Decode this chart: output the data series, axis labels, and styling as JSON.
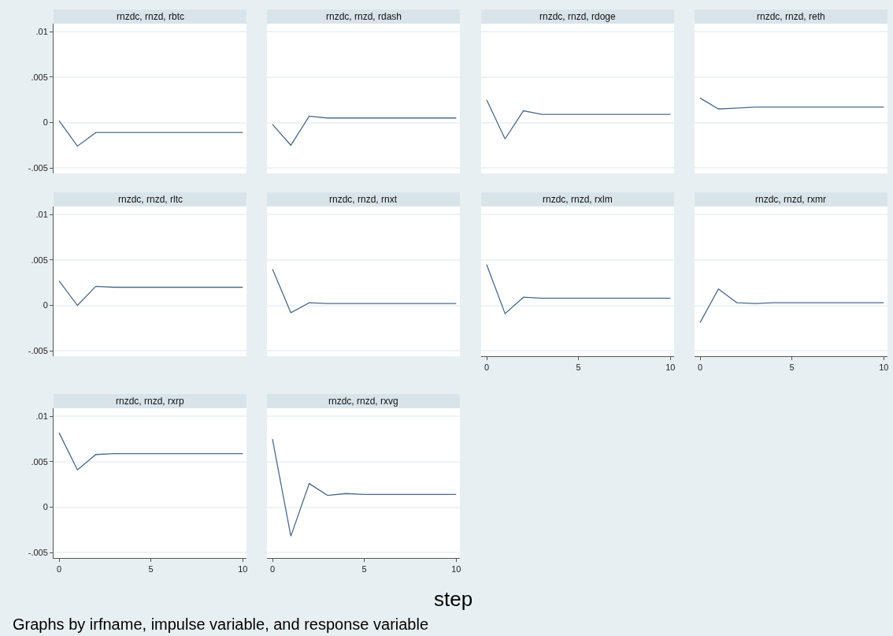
{
  "chart_data": [
    {
      "type": "line",
      "title": "rnzdc, rnzd, rbtc",
      "x": [
        0,
        1,
        2,
        3,
        4,
        5,
        6,
        7,
        8,
        9,
        10
      ],
      "series": [
        {
          "color": "#4c6a8a",
          "values": [
            0.0002,
            -0.0026,
            -0.0011,
            -0.0011,
            -0.0011,
            -0.0011,
            -0.0011,
            -0.0011,
            -0.0011,
            -0.0011,
            -0.0011
          ]
        }
      ],
      "xlim": [
        -0.3,
        10.2
      ],
      "ylim": [
        -0.0056,
        0.0109
      ],
      "yticks": [
        {
          "value": -0.005,
          "label": "-.005"
        },
        0,
        {
          "value": 0.005,
          "label": ".005"
        },
        {
          "value": 0.01,
          "label": ".01"
        }
      ],
      "grid": "y",
      "tick_labels": "y"
    },
    {
      "type": "line",
      "title": "rnzdc, rnzd, rdash",
      "x": [
        0,
        1,
        2,
        3,
        4,
        5,
        6,
        7,
        8,
        9,
        10
      ],
      "series": [
        {
          "color": "#4c6a8a",
          "values": [
            -0.0002,
            -0.0025,
            0.0007,
            0.0005,
            0.0005,
            0.0005,
            0.0005,
            0.0005,
            0.0005,
            0.0005,
            0.0005
          ]
        }
      ],
      "xlim": [
        -0.3,
        10.2
      ],
      "ylim": [
        -0.0056,
        0.0109
      ],
      "yticks": [
        {
          "value": -0.005,
          "label": null
        },
        {
          "value": 0,
          "label": null
        },
        {
          "value": 0.005,
          "label": null
        },
        {
          "value": 0.01,
          "label": null
        }
      ],
      "grid": "y",
      "tick_labels": false
    },
    {
      "type": "line",
      "title": "rnzdc, rnzd, rdoge",
      "x": [
        0,
        1,
        2,
        3,
        4,
        5,
        6,
        7,
        8,
        9,
        10
      ],
      "series": [
        {
          "color": "#4c6a8a",
          "values": [
            0.0025,
            -0.0018,
            0.0013,
            0.0009,
            0.0009,
            0.0009,
            0.0009,
            0.0009,
            0.0009,
            0.0009,
            0.0009
          ]
        }
      ],
      "xlim": [
        -0.3,
        10.2
      ],
      "ylim": [
        -0.0056,
        0.0109
      ],
      "yticks": [
        {
          "value": -0.005,
          "label": null
        },
        {
          "value": 0,
          "label": null
        },
        {
          "value": 0.005,
          "label": null
        },
        {
          "value": 0.01,
          "label": null
        }
      ],
      "grid": "y",
      "tick_labels": false
    },
    {
      "type": "line",
      "title": "rnzdc, rnzd, reth",
      "x": [
        0,
        1,
        2,
        3,
        4,
        5,
        6,
        7,
        8,
        9,
        10
      ],
      "series": [
        {
          "color": "#4c6a8a",
          "values": [
            0.0027,
            0.0015,
            0.0016,
            0.0017,
            0.0017,
            0.0017,
            0.0017,
            0.0017,
            0.0017,
            0.0017,
            0.0017
          ]
        }
      ],
      "xlim": [
        -0.3,
        10.2
      ],
      "ylim": [
        -0.0056,
        0.0109
      ],
      "yticks": [
        {
          "value": -0.005,
          "label": null
        },
        {
          "value": 0,
          "label": null
        },
        {
          "value": 0.005,
          "label": null
        },
        {
          "value": 0.01,
          "label": null
        }
      ],
      "grid": "y",
      "tick_labels": false
    },
    {
      "type": "line",
      "title": "rnzdc, rnzd, rltc",
      "x": [
        0,
        1,
        2,
        3,
        4,
        5,
        6,
        7,
        8,
        9,
        10
      ],
      "series": [
        {
          "color": "#4c6a8a",
          "values": [
            0.0027,
            0.0,
            0.0021,
            0.002,
            0.002,
            0.002,
            0.002,
            0.002,
            0.002,
            0.002,
            0.002
          ]
        }
      ],
      "xlim": [
        -0.3,
        10.2
      ],
      "ylim": [
        -0.0056,
        0.0109
      ],
      "yticks": [
        {
          "value": -0.005,
          "label": "-.005"
        },
        0,
        {
          "value": 0.005,
          "label": ".005"
        },
        {
          "value": 0.01,
          "label": ".01"
        }
      ],
      "grid": "y",
      "tick_labels": "y"
    },
    {
      "type": "line",
      "title": "rnzdc, rnzd, rnxt",
      "x": [
        0,
        1,
        2,
        3,
        4,
        5,
        6,
        7,
        8,
        9,
        10
      ],
      "series": [
        {
          "color": "#4c6a8a",
          "values": [
            0.004,
            -0.0008,
            0.0003,
            0.0002,
            0.0002,
            0.0002,
            0.0002,
            0.0002,
            0.0002,
            0.0002,
            0.0002
          ]
        }
      ],
      "xlim": [
        -0.3,
        10.2
      ],
      "ylim": [
        -0.0056,
        0.0109
      ],
      "yticks": [
        {
          "value": -0.005,
          "label": null
        },
        {
          "value": 0,
          "label": null
        },
        {
          "value": 0.005,
          "label": null
        },
        {
          "value": 0.01,
          "label": null
        }
      ],
      "grid": "y",
      "tick_labels": false
    },
    {
      "type": "line",
      "title": "rnzdc, rnzd, rxlm",
      "x": [
        0,
        1,
        2,
        3,
        4,
        5,
        6,
        7,
        8,
        9,
        10
      ],
      "series": [
        {
          "color": "#4c6a8a",
          "values": [
            0.0045,
            -0.0009,
            0.0009,
            0.0008,
            0.0008,
            0.0008,
            0.0008,
            0.0008,
            0.0008,
            0.0008,
            0.0008
          ]
        }
      ],
      "xlim": [
        -0.3,
        10.2
      ],
      "ylim": [
        -0.0056,
        0.0109
      ],
      "xticks": [
        0,
        5,
        10
      ],
      "yticks": [
        {
          "value": -0.005,
          "label": null
        },
        {
          "value": 0,
          "label": null
        },
        {
          "value": 0.005,
          "label": null
        },
        {
          "value": 0.01,
          "label": null
        }
      ],
      "grid": "y",
      "tick_labels": "x"
    },
    {
      "type": "line",
      "title": "rnzdc, rnzd, rxmr",
      "x": [
        0,
        1,
        2,
        3,
        4,
        5,
        6,
        7,
        8,
        9,
        10
      ],
      "series": [
        {
          "color": "#4c6a8a",
          "values": [
            -0.0019,
            0.0018,
            0.0003,
            0.0002,
            0.0003,
            0.0003,
            0.0003,
            0.0003,
            0.0003,
            0.0003,
            0.0003
          ]
        }
      ],
      "xlim": [
        -0.3,
        10.2
      ],
      "ylim": [
        -0.0056,
        0.0109
      ],
      "xticks": [
        0,
        5,
        10
      ],
      "yticks": [
        {
          "value": -0.005,
          "label": null
        },
        {
          "value": 0,
          "label": null
        },
        {
          "value": 0.005,
          "label": null
        },
        {
          "value": 0.01,
          "label": null
        }
      ],
      "grid": "y",
      "tick_labels": "x"
    },
    {
      "type": "line",
      "title": "rnzdc, rnzd, rxrp",
      "x": [
        0,
        1,
        2,
        3,
        4,
        5,
        6,
        7,
        8,
        9,
        10
      ],
      "series": [
        {
          "color": "#4c6a8a",
          "values": [
            0.0082,
            0.0041,
            0.0058,
            0.0059,
            0.0059,
            0.0059,
            0.0059,
            0.0059,
            0.0059,
            0.0059,
            0.0059
          ]
        }
      ],
      "xlim": [
        -0.3,
        10.2
      ],
      "ylim": [
        -0.0056,
        0.0109
      ],
      "xticks": [
        0,
        5,
        10
      ],
      "yticks": [
        {
          "value": -0.005,
          "label": "-.005"
        },
        0,
        {
          "value": 0.005,
          "label": ".005"
        },
        {
          "value": 0.01,
          "label": ".01"
        }
      ],
      "grid": "y"
    },
    {
      "type": "line",
      "title": "rnzdc, rnzd, rxvg",
      "x": [
        0,
        1,
        2,
        3,
        4,
        5,
        6,
        7,
        8,
        9,
        10
      ],
      "series": [
        {
          "color": "#4c6a8a",
          "values": [
            0.0075,
            -0.0032,
            0.0026,
            0.0013,
            0.0015,
            0.0014,
            0.0014,
            0.0014,
            0.0014,
            0.0014,
            0.0014
          ]
        }
      ],
      "xlim": [
        -0.3,
        10.2
      ],
      "ylim": [
        -0.0056,
        0.0109
      ],
      "xticks": [
        0,
        5,
        10
      ],
      "yticks": [
        {
          "value": -0.005,
          "label": null
        },
        {
          "value": 0,
          "label": null
        },
        {
          "value": 0.005,
          "label": null
        },
        {
          "value": 0.01,
          "label": null
        }
      ],
      "grid": "y",
      "tick_labels": "x",
      "xlabel": "step",
      "annotations": [
        "Graphs by irfname, impulse variable, and response variable"
      ]
    }
  ]
}
